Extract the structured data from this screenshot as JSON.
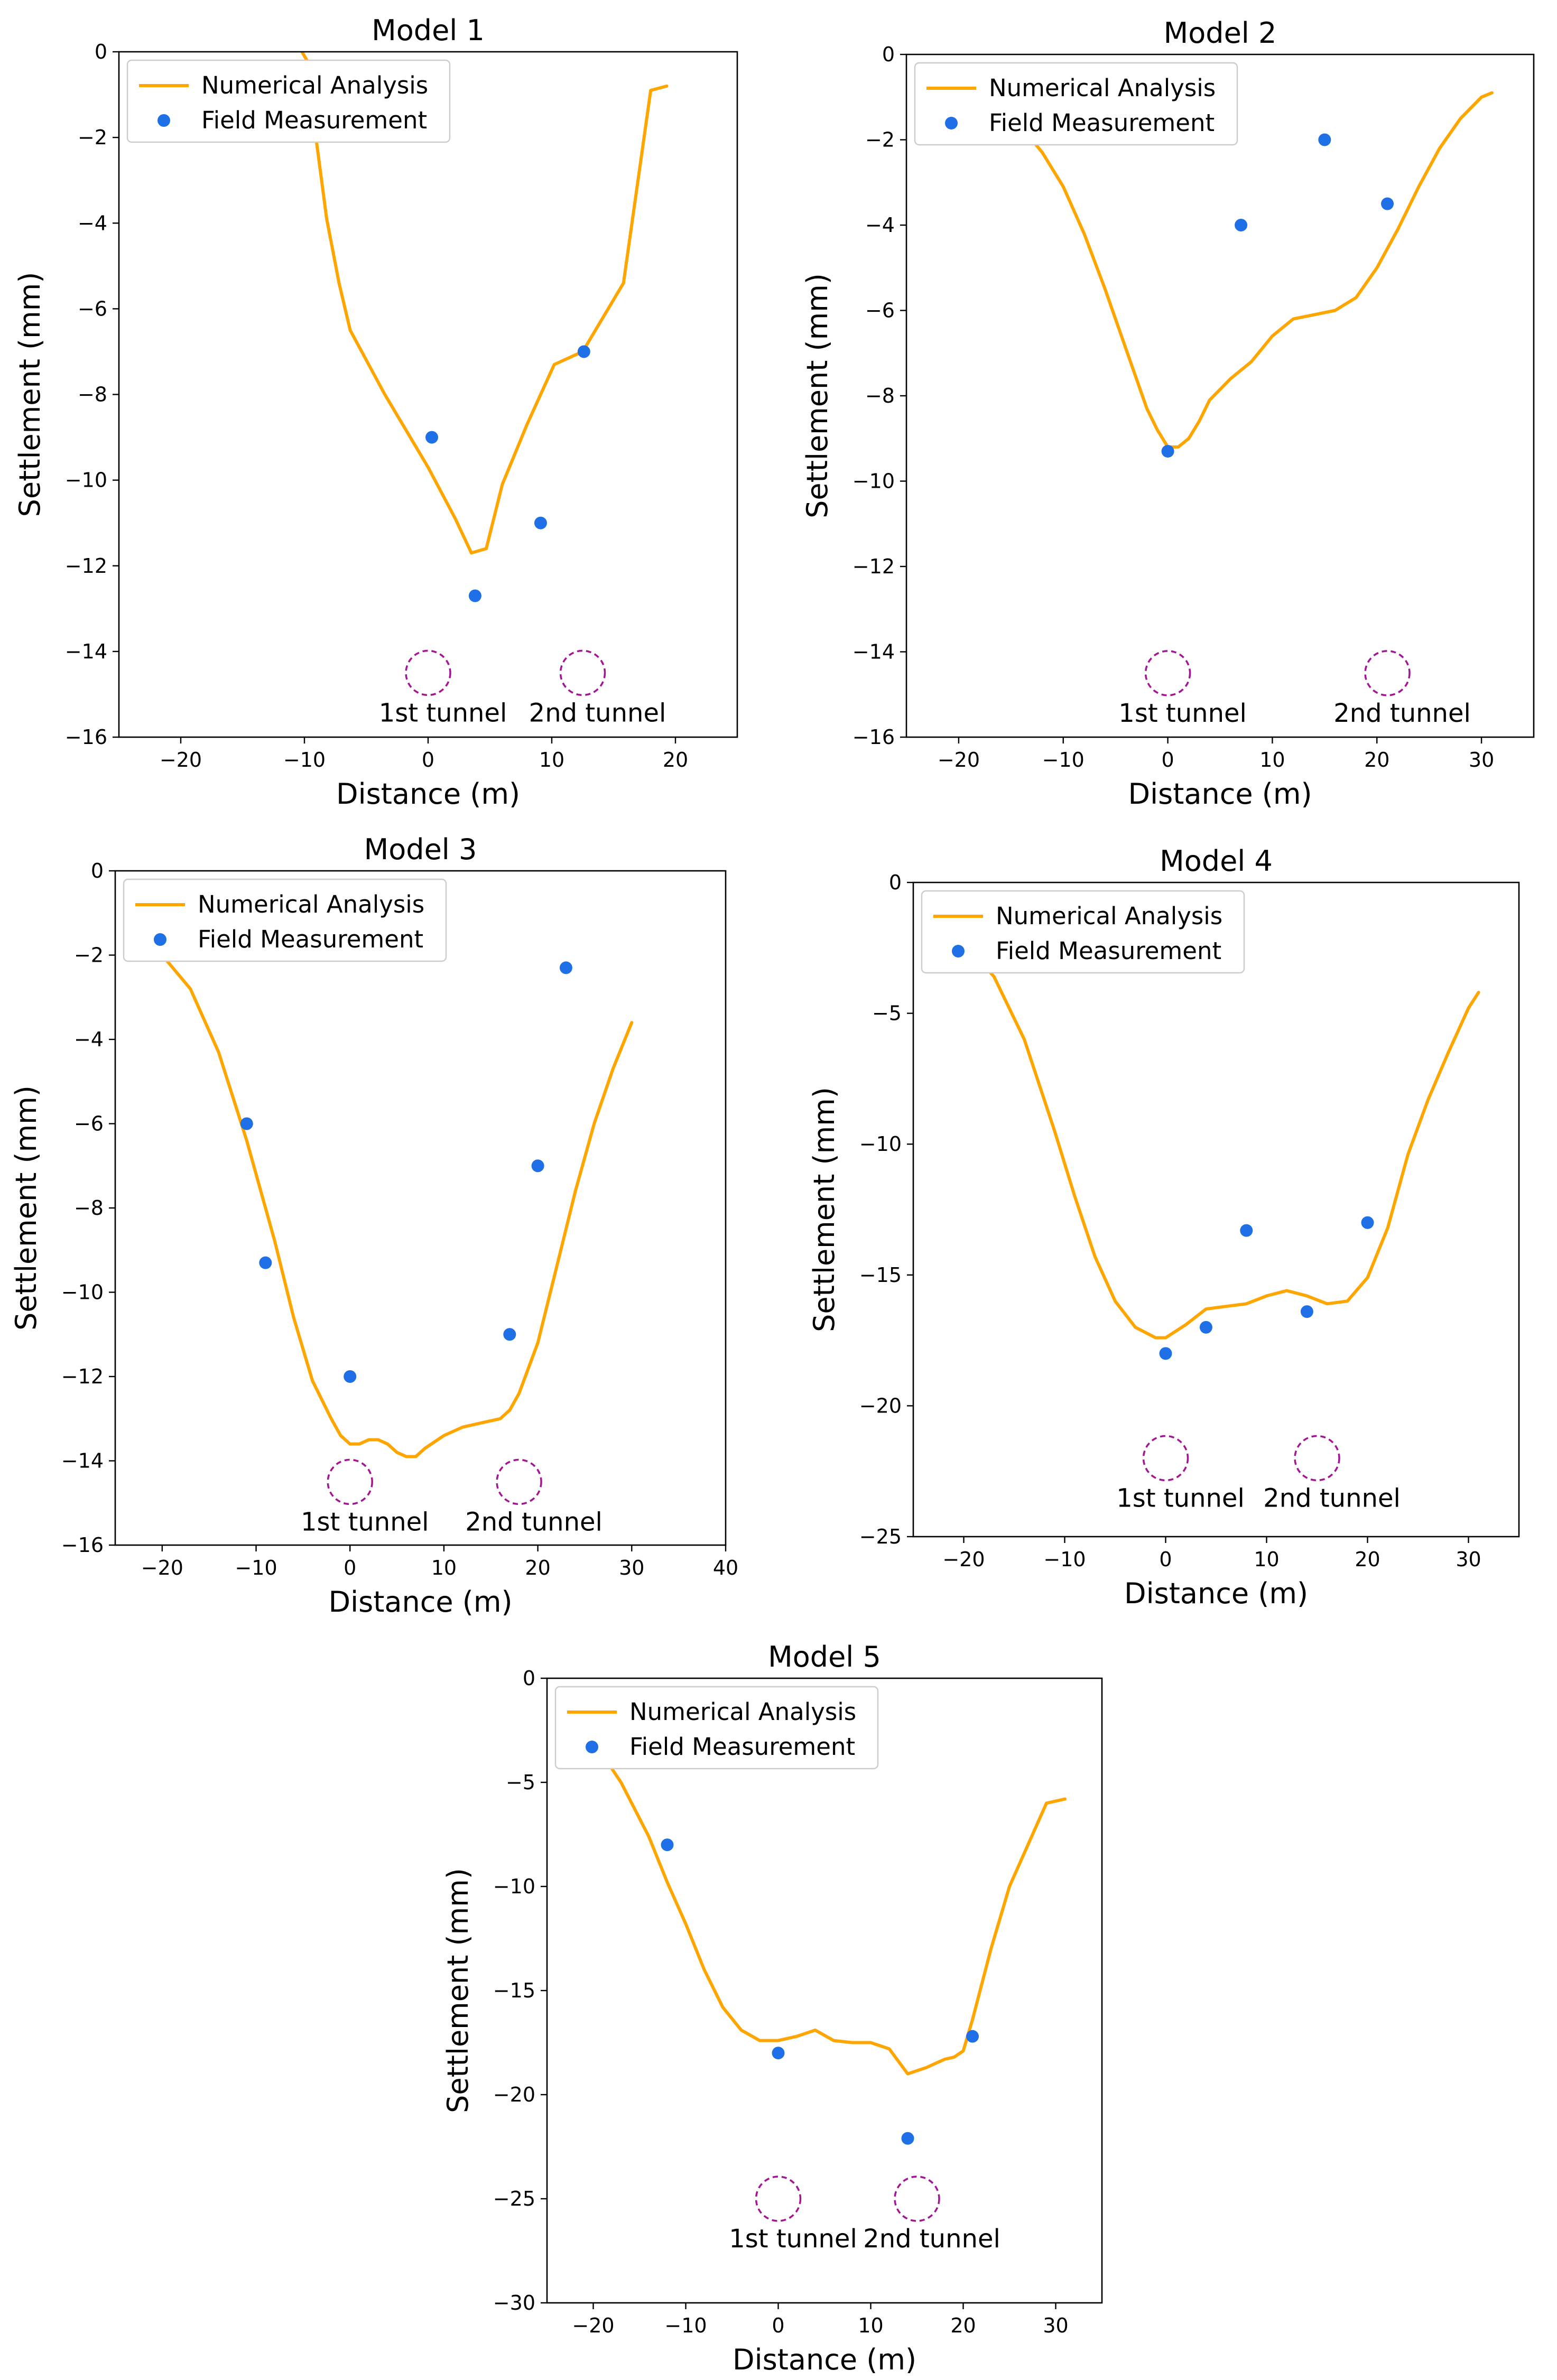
{
  "colors": {
    "numerical": "#ffa500",
    "field": "#1f6fe6",
    "tunnel": "#a31592"
  },
  "chart_data": [
    {
      "type": "line",
      "title": "Model 1",
      "xlabel": "Distance (m)",
      "ylabel": "Settlement (mm)",
      "xlim": [
        -25,
        25
      ],
      "ylim": [
        -16,
        0
      ],
      "xticks": [
        -20,
        -10,
        0,
        10,
        20
      ],
      "yticks": [
        0,
        -2,
        -4,
        -6,
        -8,
        -10,
        -12,
        -14,
        -16
      ],
      "legend": {
        "position": "upper-left",
        "entries": [
          "Numerical Analysis",
          "Field Measurement"
        ]
      },
      "series": [
        {
          "name": "Numerical Analysis",
          "kind": "line",
          "x": [
            -10.2,
            -9.6,
            -9.3,
            -8.2,
            -7.2,
            -6.3,
            -3.5,
            0,
            2.2,
            3.5,
            4.7,
            6,
            8,
            10.2,
            12.5,
            15.8,
            18,
            19.3
          ],
          "y": [
            0,
            -0.3,
            -1.5,
            -3.9,
            -5.4,
            -6.5,
            -8,
            -9.7,
            -10.9,
            -11.7,
            -11.6,
            -10.1,
            -8.7,
            -7.3,
            -7,
            -5.4,
            -0.9,
            -0.8
          ]
        },
        {
          "name": "Field Measurement",
          "kind": "scatter",
          "x": [
            0.3,
            3.8,
            9.1,
            12.6
          ],
          "y": [
            -9.0,
            -12.7,
            -11.0,
            -7.0
          ]
        }
      ],
      "tunnels": [
        {
          "label": "1st tunnel",
          "x": 0,
          "y": -14.5
        },
        {
          "label": "2nd tunnel",
          "x": 12.5,
          "y": -14.5
        }
      ]
    },
    {
      "type": "line",
      "title": "Model 2",
      "xlabel": "Distance (m)",
      "ylabel": "Settlement (mm)",
      "xlim": [
        -25,
        35
      ],
      "ylim": [
        -16,
        0
      ],
      "xticks": [
        -20,
        -10,
        0,
        10,
        20,
        30
      ],
      "yticks": [
        0,
        -2,
        -4,
        -6,
        -8,
        -10,
        -12,
        -14,
        -16
      ],
      "legend": {
        "position": "upper-left",
        "entries": [
          "Numerical Analysis",
          "Field Measurement"
        ]
      },
      "series": [
        {
          "name": "Numerical Analysis",
          "kind": "line",
          "x": [
            -20,
            -15,
            -12,
            -10,
            -8,
            -6,
            -4,
            -2,
            -1,
            0,
            1,
            2,
            3,
            4,
            6,
            8,
            10,
            12,
            14,
            16,
            18,
            20,
            22,
            24,
            26,
            28,
            30,
            31
          ],
          "y": [
            -0.9,
            -1.4,
            -2.3,
            -3.1,
            -4.2,
            -5.5,
            -6.9,
            -8.3,
            -8.8,
            -9.2,
            -9.2,
            -9.0,
            -8.6,
            -8.1,
            -7.6,
            -7.2,
            -6.6,
            -6.2,
            -6.1,
            -6.0,
            -5.7,
            -5.0,
            -4.1,
            -3.1,
            -2.2,
            -1.5,
            -1.0,
            -0.9
          ]
        },
        {
          "name": "Field Measurement",
          "kind": "scatter",
          "x": [
            0,
            7,
            15,
            21
          ],
          "y": [
            -9.3,
            -4.0,
            -2.0,
            -3.5
          ]
        }
      ],
      "tunnels": [
        {
          "label": "1st tunnel",
          "x": 0,
          "y": -14.5
        },
        {
          "label": "2nd tunnel",
          "x": 21,
          "y": -14.5
        }
      ]
    },
    {
      "type": "line",
      "title": "Model 3",
      "xlabel": "Distance (m)",
      "ylabel": "Settlement (mm)",
      "xlim": [
        -25,
        40
      ],
      "ylim": [
        -16,
        0
      ],
      "xticks": [
        -20,
        -10,
        0,
        10,
        20,
        30,
        40
      ],
      "yticks": [
        0,
        -2,
        -4,
        -6,
        -8,
        -10,
        -12,
        -14,
        -16
      ],
      "legend": {
        "position": "upper-left",
        "entries": [
          "Numerical Analysis",
          "Field Measurement"
        ]
      },
      "series": [
        {
          "name": "Numerical Analysis",
          "kind": "line",
          "x": [
            -20,
            -17,
            -14,
            -11,
            -8,
            -6,
            -4,
            -2,
            -1,
            0,
            1,
            2,
            3,
            4,
            5,
            6,
            7,
            8,
            10,
            12,
            14,
            16,
            17,
            18,
            20,
            22,
            24,
            26,
            28,
            30
          ],
          "y": [
            -2.0,
            -2.8,
            -4.3,
            -6.4,
            -8.8,
            -10.6,
            -12.1,
            -13.0,
            -13.4,
            -13.6,
            -13.6,
            -13.5,
            -13.5,
            -13.6,
            -13.8,
            -13.9,
            -13.9,
            -13.7,
            -13.4,
            -13.2,
            -13.1,
            -13.0,
            -12.8,
            -12.4,
            -11.2,
            -9.4,
            -7.6,
            -6.0,
            -4.7,
            -3.6
          ]
        },
        {
          "name": "Field Measurement",
          "kind": "scatter",
          "x": [
            -11,
            -9,
            0,
            17,
            20,
            23
          ],
          "y": [
            -6.0,
            -9.3,
            -12.0,
            -11.0,
            -7.0,
            -2.3
          ]
        }
      ],
      "tunnels": [
        {
          "label": "1st tunnel",
          "x": 0,
          "y": -14.5
        },
        {
          "label": "2nd tunnel",
          "x": 18,
          "y": -14.5
        }
      ]
    },
    {
      "type": "line",
      "title": "Model 4",
      "xlabel": "Distance (m)",
      "ylabel": "Settlement (mm)",
      "xlim": [
        -25,
        35
      ],
      "ylim": [
        -25,
        0
      ],
      "xticks": [
        -20,
        -10,
        0,
        10,
        20,
        30
      ],
      "yticks": [
        0,
        -5,
        -10,
        -15,
        -20,
        -25
      ],
      "legend": {
        "position": "upper-left",
        "entries": [
          "Numerical Analysis",
          "Field Measurement"
        ]
      },
      "series": [
        {
          "name": "Numerical Analysis",
          "kind": "line",
          "x": [
            -20,
            -17,
            -14,
            -11,
            -9,
            -7,
            -5,
            -3,
            -1,
            0,
            2,
            4,
            6,
            8,
            10,
            12,
            14,
            16,
            18,
            20,
            22,
            24,
            26,
            28,
            30,
            31
          ],
          "y": [
            -2.3,
            -3.6,
            -6.0,
            -9.5,
            -12.0,
            -14.3,
            -16.0,
            -17.0,
            -17.4,
            -17.4,
            -16.9,
            -16.3,
            -16.2,
            -16.1,
            -15.8,
            -15.6,
            -15.8,
            -16.1,
            -16.0,
            -15.1,
            -13.2,
            -10.4,
            -8.3,
            -6.5,
            -4.8,
            -4.2
          ]
        },
        {
          "name": "Field Measurement",
          "kind": "scatter",
          "x": [
            0,
            4,
            8,
            14,
            20
          ],
          "y": [
            -18.0,
            -17.0,
            -13.3,
            -16.4,
            -13.0
          ]
        }
      ],
      "tunnels": [
        {
          "label": "1st tunnel",
          "x": 0,
          "y": -22
        },
        {
          "label": "2nd tunnel",
          "x": 15,
          "y": -22
        }
      ]
    },
    {
      "type": "line",
      "title": "Model 5",
      "xlabel": "Distance (m)",
      "ylabel": "Settlement (mm)",
      "xlim": [
        -25,
        35
      ],
      "ylim": [
        -30,
        0
      ],
      "xticks": [
        -20,
        -10,
        0,
        10,
        20,
        30
      ],
      "yticks": [
        0,
        -5,
        -10,
        -15,
        -20,
        -25,
        -30
      ],
      "legend": {
        "position": "upper-left",
        "entries": [
          "Numerical Analysis",
          "Field Measurement"
        ]
      },
      "series": [
        {
          "name": "Numerical Analysis",
          "kind": "line",
          "x": [
            -20,
            -17,
            -14,
            -12,
            -10,
            -8,
            -6,
            -4,
            -2,
            0,
            2,
            4,
            6,
            8,
            10,
            12,
            13,
            14,
            16,
            18,
            19,
            20,
            21,
            23,
            25,
            27,
            29,
            31
          ],
          "y": [
            -3.0,
            -5.0,
            -7.6,
            -9.8,
            -11.8,
            -14.0,
            -15.8,
            -16.9,
            -17.4,
            -17.4,
            -17.2,
            -16.9,
            -17.4,
            -17.5,
            -17.5,
            -17.8,
            -18.4,
            -19.0,
            -18.7,
            -18.3,
            -18.2,
            -17.9,
            -16.4,
            -13.0,
            -10.0,
            -8.0,
            -6.0,
            -5.8
          ]
        },
        {
          "name": "Field Measurement",
          "kind": "scatter",
          "x": [
            -12,
            0,
            14,
            21
          ],
          "y": [
            -8.0,
            -18.0,
            -22.1,
            -17.2
          ]
        }
      ],
      "tunnels": [
        {
          "label": "1st tunnel",
          "x": 0,
          "y": -25
        },
        {
          "label": "2nd tunnel",
          "x": 15,
          "y": -25
        }
      ]
    }
  ]
}
